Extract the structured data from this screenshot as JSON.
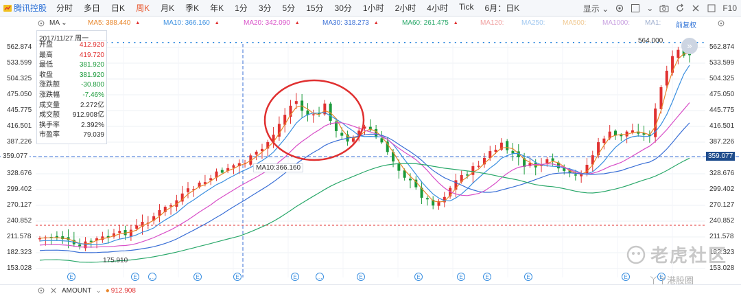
{
  "toolbar": {
    "stock_name": "腾讯控股",
    "timeframes": [
      "分时",
      "多日",
      "日K",
      "周K",
      "月K",
      "季K",
      "年K",
      "1分",
      "3分",
      "5分",
      "15分",
      "30分",
      "1小时",
      "2小时",
      "4小时",
      "Tick",
      "6月：日K"
    ],
    "active_timeframe": "周K",
    "display_label": "显示",
    "f10_label": "F10"
  },
  "ma_bar": {
    "indicator": "MA",
    "items": [
      {
        "label": "MA5: 388.440",
        "color": "#e8862b"
      },
      {
        "label": "MA10: 366.160",
        "color": "#3a8fe0"
      },
      {
        "label": "MA20: 342.090",
        "color": "#d84fc8"
      },
      {
        "label": "MA30: 318.273",
        "color": "#3a6fd6"
      },
      {
        "label": "MA60: 261.475",
        "color": "#2aa86a"
      },
      {
        "label": "MA120:",
        "color": "#f0a0a0"
      },
      {
        "label": "MA250:",
        "color": "#a0c8f0"
      },
      {
        "label": "MA500:",
        "color": "#f0c890"
      },
      {
        "label": "MA1000:",
        "color": "#c8a0e0"
      },
      {
        "label": "MA1:",
        "color": "#a0b0d0"
      }
    ],
    "adjust_label": "前复权"
  },
  "info_panel": {
    "date": "2017/11/27 周一",
    "rows": [
      {
        "label": "开盘",
        "value": "412.920",
        "color": "#e03030"
      },
      {
        "label": "最高",
        "value": "419.720",
        "color": "#e03030"
      },
      {
        "label": "最低",
        "value": "381.920",
        "color": "#1a9a3a"
      },
      {
        "label": "收盘",
        "value": "381.920",
        "color": "#1a9a3a"
      },
      {
        "label": "涨跌额",
        "value": "-30.800",
        "color": "#1a9a3a"
      },
      {
        "label": "涨跌幅",
        "value": "-7.46%",
        "color": "#1a9a3a"
      },
      {
        "label": "成交量",
        "value": "2.272亿",
        "color": "#333333"
      },
      {
        "label": "成交额",
        "value": "912.908亿",
        "color": "#333333"
      },
      {
        "label": "换手率",
        "value": "2.392%",
        "color": "#333333"
      },
      {
        "label": "市盈率",
        "value": "79.039",
        "color": "#333333"
      }
    ]
  },
  "y_axis": [
    "562.874",
    "533.599",
    "504.325",
    "475.050",
    "445.775",
    "416.501",
    "387.226",
    "359.077",
    "328.676",
    "299.402",
    "270.127",
    "240.852",
    "211.578",
    "182.323",
    "153.028"
  ],
  "crosshair_price": "359.077",
  "annotations": {
    "ma10_tooltip": "MA10:366.160",
    "low_label": "175.910",
    "high_label": "564.000"
  },
  "bottom_bar": {
    "indicator": "AMOUNT",
    "value": "912.908"
  },
  "watermark": {
    "main": "老虎社区",
    "sub": "丫丫港股圈"
  },
  "colors": {
    "up": "#e03030",
    "down": "#1a9a3a",
    "accent": "#2a6fd6",
    "highlight": "#e8552b"
  },
  "chart_data": {
    "type": "candlestick",
    "x_range": [
      0,
      1
    ],
    "ylim": [
      153.028,
      562.874
    ],
    "ma_lines": [
      "MA5",
      "MA10",
      "MA20",
      "MA30",
      "MA60"
    ]
  }
}
